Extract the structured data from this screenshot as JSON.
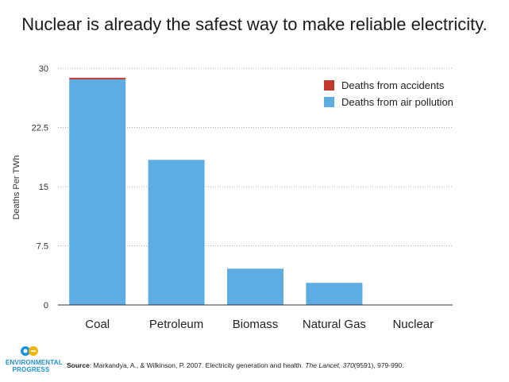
{
  "title": "Nuclear is already the safest way to make reliable electricity.",
  "chart_data": {
    "type": "bar",
    "stacked": true,
    "title": "Nuclear is already the safest way to make reliable electricity.",
    "xlabel": "",
    "ylabel": "Deaths Per TWh",
    "ylim": [
      0,
      30
    ],
    "yticks": [
      "0",
      "7.5",
      "15",
      "22.5",
      "30"
    ],
    "grid": true,
    "legend_position": "top-right",
    "categories": [
      "Coal",
      "Petroleum",
      "Biomass",
      "Natural Gas",
      "Nuclear"
    ],
    "series": [
      {
        "name": "Deaths from accidents",
        "color": "#c0392b",
        "values": [
          0.15,
          0.0,
          0.0,
          0.0,
          0.0
        ]
      },
      {
        "name": "Deaths from air pollution",
        "color": "#5dade2",
        "values": [
          28.6,
          18.4,
          4.6,
          2.8,
          0.0
        ]
      }
    ]
  },
  "logo": {
    "text_line1": "ENVIRONMENTAL",
    "text_line2": "PROGRESS",
    "accent": "#1f8fd8",
    "accent2": "#f4b400"
  },
  "source": {
    "label": "Source",
    "text_a": ": Markandya, A., & Wilkinson, P. 2007. Electricity generation and health. ",
    "journal": "The Lancet, 370",
    "text_b": "(9591), 979-990."
  }
}
